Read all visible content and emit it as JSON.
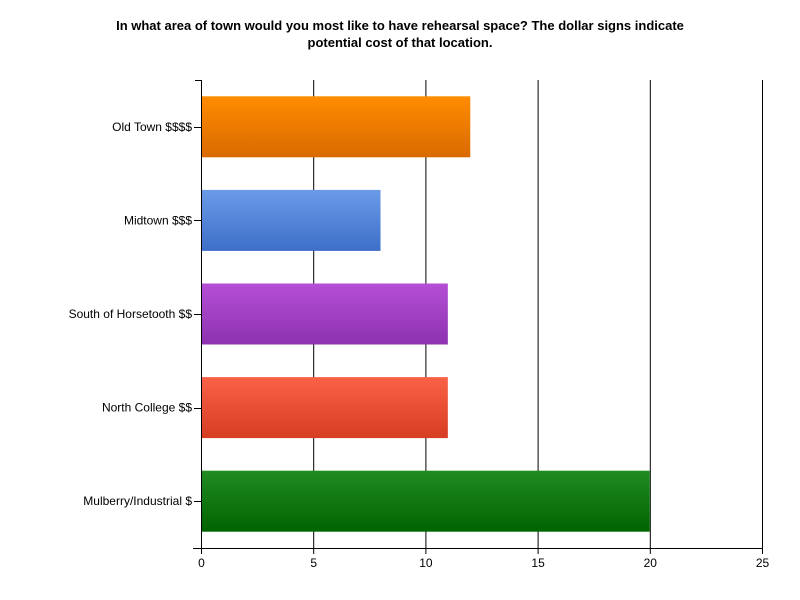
{
  "chart_data": {
    "type": "bar",
    "orientation": "horizontal",
    "title": "In what area of town would you most like to have rehearsal space? The dollar signs indicate\npotential cost of that location.",
    "categories": [
      "Old Town $$$$",
      "Midtown $$$",
      "South of Horsetooth $$",
      "North College $$",
      "Mulberry/Industrial $"
    ],
    "values": [
      12,
      8,
      11,
      11,
      20
    ],
    "colors": [
      [
        "#ff8c00",
        "#d96a00"
      ],
      [
        "#6b9be8",
        "#3d6fc9"
      ],
      [
        "#b54fd6",
        "#8d32b0"
      ],
      [
        "#fa6248",
        "#d63d22"
      ],
      [
        "#228b22",
        "#006400"
      ]
    ],
    "xlim": [
      0,
      25
    ],
    "xticks": [
      0,
      5,
      10,
      15,
      20,
      25
    ],
    "grid": true,
    "legend": "none"
  }
}
